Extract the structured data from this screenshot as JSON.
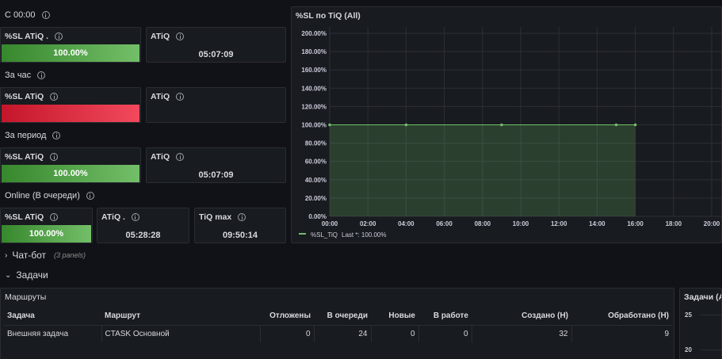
{
  "rows": {
    "c0000": "С 00:00",
    "hour": "За час",
    "period": "За период",
    "online": "Online (В очереди)"
  },
  "stats": {
    "r1_sl": {
      "title": "%SL ATiQ .",
      "value": "100.00%"
    },
    "r1_atiq": {
      "title": "ATiQ",
      "value": "05:07:09"
    },
    "r2_sl": {
      "title": "%SL ATiQ",
      "value": ""
    },
    "r2_atiq": {
      "title": "ATiQ",
      "value": ""
    },
    "r3_sl": {
      "title": "%SL ATiQ",
      "value": "100.00%"
    },
    "r3_atiq": {
      "title": "ATiQ",
      "value": "05:07:09"
    },
    "r4_sl": {
      "title": "%SL ATiQ",
      "value": "100.00%"
    },
    "r4_atiq": {
      "title": "ATiQ .",
      "value": "05:28:28"
    },
    "r4_tiq": {
      "title": "TiQ max",
      "value": "09:50:14"
    }
  },
  "chart_panel": {
    "title": "%SL по TiQ (All)"
  },
  "chart_data": {
    "type": "area",
    "title": "%SL по TiQ (All)",
    "x_ticks": [
      "00:00",
      "02:00",
      "04:00",
      "06:00",
      "08:00",
      "10:00",
      "12:00",
      "14:00",
      "16:00",
      "18:00",
      "20:00"
    ],
    "y_ticks": [
      "0.00%",
      "20.00%",
      "40.00%",
      "60.00%",
      "80.00%",
      "100.00%",
      "120.00%",
      "140.00%",
      "160.00%",
      "180.00%",
      "200.00%"
    ],
    "ylim": [
      0,
      200
    ],
    "xlim_hours": [
      0,
      20
    ],
    "series": [
      {
        "name": "%SL_TiQ",
        "x_hours": [
          0,
          4,
          9,
          15,
          16
        ],
        "values": [
          100,
          100,
          100,
          100,
          100
        ],
        "color": "#73bf69"
      }
    ],
    "legend": {
      "label": "%SL_TiQ",
      "stat": "Last *: 100.00%",
      "placement": "bottom-left"
    },
    "grid": true
  },
  "chatbot": {
    "title": "Чат-бот",
    "sub": "(3 panels)"
  },
  "tasks": {
    "title": "Задачи"
  },
  "routes": {
    "title": "Маршруты",
    "columns": [
      "Задача",
      "Маршрут",
      "Отложены",
      "В очереди",
      "Новые",
      "В работе",
      "Создано (Н)",
      "Обработано (Н)"
    ],
    "rows": [
      [
        "Внешняя задача",
        "CTASK Основной",
        "0",
        "24",
        "0",
        "0",
        "32",
        "9"
      ]
    ]
  },
  "right_panel": {
    "title": "Задачи (All)",
    "y_ticks": [
      "25",
      "20"
    ]
  },
  "colors": {
    "bg": "#111217",
    "panel": "#181b1f",
    "green": "#73bf69",
    "red": "#f2495c"
  }
}
